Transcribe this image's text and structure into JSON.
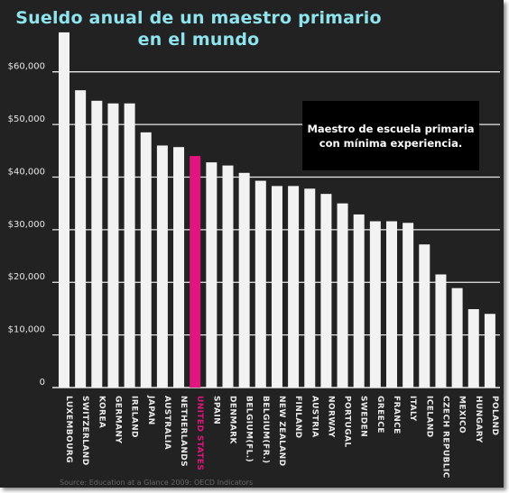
{
  "chart_data": {
    "type": "bar",
    "title": "Sueldo anual de un maestro primario\nen el mundo",
    "title_lines": [
      "Sueldo anual de un maestro primario",
      "en el mundo"
    ],
    "annotation_lines": [
      "Maestro de escuela primaria",
      "con mínima experiencia."
    ],
    "source": "Source: Education at a Glance 2009: OECD Indicators",
    "xlabel": "",
    "ylabel": "",
    "ylim": [
      0,
      68000
    ],
    "yticks": [
      0,
      10000,
      20000,
      30000,
      40000,
      50000,
      60000
    ],
    "ytick_labels": [
      "0",
      "$10,000",
      "$20,000",
      "$30,000",
      "$40,000",
      "$50,000",
      "$60,000"
    ],
    "grid": true,
    "bar_color": "#f2f2f2",
    "highlight_color": "#e0157e",
    "highlight": "UNITED STATES",
    "categories": [
      "LUXEMBOURG",
      "SWITZERLAND",
      "KOREA",
      "GERMANY",
      "IRELAND",
      "JAPAN",
      "AUSTRALIA",
      "NETHERLANDS",
      "UNITED STATES",
      "SPAIN",
      "DENMARK",
      "BELGIUM(FL.)",
      "BELGIUM(FR.)",
      "NEW ZEALAND",
      "FINLAND",
      "AUSTRIA",
      "NORWAY",
      "PORTUGAL",
      "SWEDEN",
      "GREECE",
      "FRANCE",
      "ITALY",
      "ICELAND",
      "CZECH REPUBLIC",
      "MEXICO",
      "HUNGARY",
      "POLAND"
    ],
    "values": [
      67500,
      56500,
      54500,
      54000,
      54000,
      48500,
      46000,
      45700,
      44000,
      42800,
      42200,
      40800,
      39300,
      38300,
      38300,
      37800,
      36800,
      35000,
      32900,
      31600,
      31600,
      31300,
      27200,
      21500,
      18900,
      14900,
      14000
    ]
  }
}
